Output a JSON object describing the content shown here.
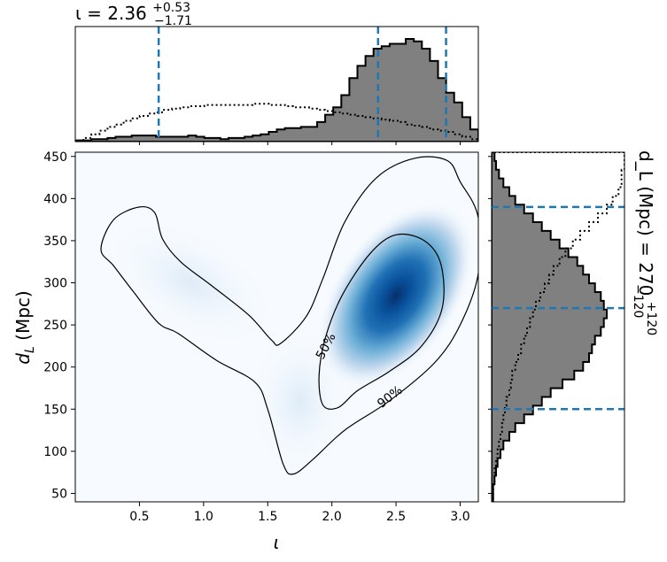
{
  "chart_data": [
    {
      "type": "heatmap",
      "panel": "joint",
      "xlabel": "ι",
      "ylabel": "d_L (Mpc)",
      "xlim": [
        0.0,
        3.1416
      ],
      "ylim": [
        40,
        455
      ],
      "xticks": [
        0.5,
        1.0,
        1.5,
        2.0,
        2.5,
        3.0
      ],
      "xtick_labels": [
        "0.5",
        "1.0",
        "1.5",
        "2.0",
        "2.5",
        "3.0"
      ],
      "yticks": [
        50,
        100,
        150,
        200,
        250,
        300,
        350,
        400,
        450
      ],
      "ytick_labels": [
        "50",
        "100",
        "150",
        "200",
        "250",
        "300",
        "350",
        "400",
        "450"
      ],
      "colormap": "Blues",
      "density_peak": {
        "iota": 2.5,
        "dL": 285
      },
      "contours": [
        {
          "label": "50%",
          "points": [
            [
              1.93,
              155
            ],
            [
              2.05,
              152
            ],
            [
              2.2,
              172
            ],
            [
              2.45,
              195
            ],
            [
              2.7,
              225
            ],
            [
              2.86,
              270
            ],
            [
              2.85,
              322
            ],
            [
              2.72,
              350
            ],
            [
              2.5,
              357
            ],
            [
              2.3,
              335
            ],
            [
              2.08,
              285
            ],
            [
              1.95,
              235
            ],
            [
              1.9,
              190
            ]
          ]
        },
        {
          "label": "90%",
          "points": [
            [
              0.2,
              340
            ],
            [
              0.3,
              375
            ],
            [
              0.5,
              390
            ],
            [
              0.62,
              383
            ],
            [
              0.68,
              352
            ],
            [
              0.82,
              325
            ],
            [
              1.05,
              298
            ],
            [
              1.35,
              262
            ],
            [
              1.53,
              232
            ],
            [
              1.6,
              228
            ],
            [
              1.8,
              260
            ],
            [
              1.93,
              305
            ],
            [
              2.1,
              372
            ],
            [
              2.35,
              425
            ],
            [
              2.65,
              448
            ],
            [
              2.9,
              445
            ],
            [
              3.0,
              420
            ],
            [
              3.14,
              378
            ],
            [
              3.14,
              310
            ],
            [
              3.0,
              250
            ],
            [
              2.8,
              205
            ],
            [
              2.45,
              160
            ],
            [
              2.1,
              125
            ],
            [
              1.85,
              90
            ],
            [
              1.7,
              73
            ],
            [
              1.62,
              85
            ],
            [
              1.5,
              150
            ],
            [
              1.4,
              182
            ],
            [
              1.1,
              208
            ],
            [
              0.8,
              240
            ],
            [
              0.65,
              252
            ],
            [
              0.45,
              290
            ],
            [
              0.3,
              320
            ]
          ]
        }
      ]
    },
    {
      "type": "bar",
      "panel": "iota-marginal",
      "title": "ι = 2.36",
      "title_sup": "+0.53",
      "title_sub": "−1.71",
      "median": 2.36,
      "quantiles": [
        0.65,
        2.36,
        2.89
      ],
      "bin_edges_range": [
        0.0,
        3.1416
      ],
      "bins": 50,
      "posterior": [
        1,
        1,
        2,
        2,
        3,
        4,
        4,
        5,
        5,
        5,
        4,
        4,
        4,
        4,
        5,
        4,
        3,
        3,
        2,
        3,
        3,
        4,
        5,
        6,
        8,
        10,
        11,
        11,
        12,
        12,
        16,
        22,
        28,
        38,
        52,
        62,
        70,
        76,
        78,
        80,
        80,
        84,
        82,
        76,
        66,
        52,
        40,
        32,
        20,
        10
      ],
      "prior": [
        1,
        3,
        6,
        9,
        12,
        14,
        17,
        19,
        21,
        23,
        24,
        26,
        27,
        28,
        29,
        29,
        30,
        30,
        30,
        30,
        30,
        30,
        31,
        31,
        30,
        30,
        29,
        28,
        28,
        27,
        26,
        25,
        24,
        23,
        22,
        21,
        20,
        19,
        18,
        17,
        16,
        14,
        13,
        12,
        10,
        9,
        8,
        6,
        4,
        2
      ]
    },
    {
      "type": "bar",
      "panel": "dL-marginal",
      "orientation": "horizontal",
      "title": "d_L (Mpc) = 270",
      "title_sup": "+120",
      "title_sub": "−120",
      "median": 270,
      "quantiles": [
        150,
        270,
        390
      ],
      "bin_edges_range": [
        40,
        455
      ],
      "bins": 40,
      "posterior": [
        1,
        1,
        2,
        3,
        4,
        6,
        8,
        12,
        16,
        22,
        28,
        34,
        40,
        48,
        56,
        62,
        66,
        68,
        70,
        74,
        76,
        78,
        76,
        74,
        70,
        66,
        62,
        58,
        52,
        46,
        40,
        34,
        28,
        22,
        16,
        12,
        8,
        5,
        3,
        2
      ],
      "prior": [
        1,
        1,
        2,
        2,
        3,
        4,
        5,
        6,
        7,
        8,
        9,
        10,
        12,
        13,
        14,
        16,
        18,
        20,
        22,
        24,
        26,
        28,
        30,
        33,
        36,
        39,
        42,
        46,
        50,
        55,
        60,
        66,
        72,
        78,
        82,
        86,
        88,
        88,
        90,
        90
      ]
    }
  ]
}
